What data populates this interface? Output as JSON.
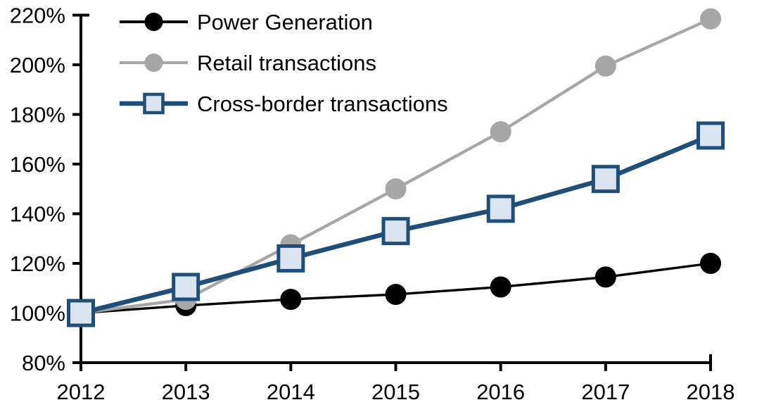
{
  "chart_data": {
    "type": "line",
    "title": "",
    "xlabel": "",
    "ylabel": "",
    "categories": [
      "2012",
      "2013",
      "2014",
      "2015",
      "2016",
      "2017",
      "2018"
    ],
    "series": [
      {
        "name": "Power Generation",
        "values": [
          100,
          103,
          105.5,
          107.5,
          110.5,
          114.5,
          120
        ],
        "line_color": "#000000",
        "marker": "circle",
        "marker_fill": "#000000",
        "marker_stroke": "#000000",
        "line_width": 3.4
      },
      {
        "name": "Retail transactions",
        "values": [
          100,
          105.5,
          127.5,
          150,
          173,
          199.5,
          218.5
        ],
        "line_color": "#a6a6a6",
        "marker": "circle",
        "marker_fill": "#a6a6a6",
        "marker_stroke": "#a6a6a6",
        "line_width": 4.3
      },
      {
        "name": "Cross-border transactions",
        "values": [
          100,
          110.5,
          122,
          133,
          142,
          154,
          171.5
        ],
        "line_color": "#1f4e79",
        "marker": "square",
        "marker_fill": "#dbe5f1",
        "marker_stroke": "#1f4e79",
        "line_width": 6.5
      }
    ],
    "ylim": [
      80,
      220
    ],
    "ytick_step": 20,
    "ytick_labels": [
      "80%",
      "100%",
      "120%",
      "140%",
      "160%",
      "180%",
      "200%",
      "220%"
    ],
    "ytick_suffix": "%",
    "grid": false,
    "legend_position": "top-left",
    "background_color": "#ffffff",
    "axis_color": "#000000"
  }
}
